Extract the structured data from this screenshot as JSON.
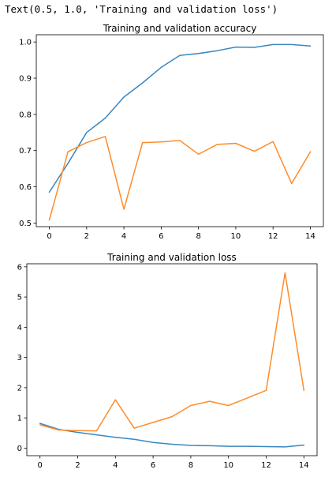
{
  "output_text": "Text(0.5, 1.0, 'Training and validation loss')",
  "colors": {
    "training": "#3a87bf",
    "validation": "#ff8c2a"
  },
  "chart_data": [
    {
      "type": "line",
      "title": "Training and validation accuracy",
      "xlabel": "",
      "ylabel": "",
      "xlim": [
        -0.7,
        14.7
      ],
      "ylim": [
        0.49,
        1.02
      ],
      "xticks": [
        0,
        2,
        4,
        6,
        8,
        10,
        12,
        14
      ],
      "yticks": [
        0.5,
        0.6,
        0.7,
        0.8,
        0.9,
        1.0
      ],
      "ytick_labels": [
        "0.5",
        "0.6",
        "0.7",
        "0.8",
        "0.9",
        "1.0"
      ],
      "x": [
        0,
        1,
        2,
        3,
        4,
        5,
        6,
        7,
        8,
        9,
        10,
        11,
        12,
        13,
        14
      ],
      "series": [
        {
          "values": [
            0.585,
            0.665,
            0.75,
            0.79,
            0.848,
            0.887,
            0.93,
            0.963,
            0.968,
            0.976,
            0.986,
            0.985,
            0.993,
            0.993,
            0.989
          ]
        },
        {
          "values": [
            0.508,
            0.697,
            0.722,
            0.739,
            0.538,
            0.722,
            0.724,
            0.728,
            0.69,
            0.717,
            0.72,
            0.698,
            0.725,
            0.609,
            0.697
          ]
        }
      ],
      "grid": false
    },
    {
      "type": "line",
      "title": "Training and validation loss",
      "xlabel": "",
      "ylabel": "",
      "xlim": [
        -0.7,
        14.7
      ],
      "ylim": [
        -0.25,
        6.1
      ],
      "xticks": [
        0,
        2,
        4,
        6,
        8,
        10,
        12,
        14
      ],
      "yticks": [
        0,
        1,
        2,
        3,
        4,
        5,
        6
      ],
      "ytick_labels": [
        "0",
        "1",
        "2",
        "3",
        "4",
        "5",
        "6"
      ],
      "x": [
        0,
        1,
        2,
        3,
        4,
        5,
        6,
        7,
        8,
        9,
        10,
        11,
        12,
        13,
        14
      ],
      "series": [
        {
          "values": [
            0.82,
            0.62,
            0.52,
            0.44,
            0.36,
            0.29,
            0.19,
            0.13,
            0.09,
            0.08,
            0.06,
            0.06,
            0.05,
            0.04,
            0.1
          ]
        },
        {
          "values": [
            0.77,
            0.6,
            0.58,
            0.57,
            1.6,
            0.66,
            0.85,
            1.04,
            1.41,
            1.55,
            1.41,
            1.66,
            1.91,
            5.8,
            1.91
          ]
        }
      ],
      "grid": false
    }
  ]
}
